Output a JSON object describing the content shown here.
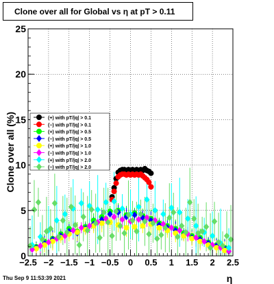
{
  "title": "Clone  over all for Global vs    η at pT > 0.11",
  "footer": "Thu Sep  9 11:53:39 2021",
  "chart_data": {
    "type": "scatter",
    "title": "Clone  over all for Global vs    η at pT > 0.11",
    "xlabel": "η",
    "ylabel": "Clone  over all (%)",
    "xlim": [
      -2.5,
      2.5
    ],
    "ylim": [
      0,
      25
    ],
    "x_ticks": [
      "−2.5",
      "−2",
      "−1.5",
      "−1",
      "−0.5",
      "0",
      "0.5",
      "1",
      "1.5",
      "2",
      "2.5"
    ],
    "y_ticks": [
      "0",
      "5",
      "10",
      "15",
      "20",
      "25"
    ],
    "grid": true,
    "legend_position": "left",
    "series": [
      {
        "name": "(+) with pT/|q| > 0.1",
        "color": "#000000",
        "marker": "circle",
        "x": [
          -0.45,
          -0.4,
          -0.35,
          -0.3,
          -0.25,
          -0.2,
          -0.15,
          -0.1,
          -0.05,
          0.0,
          0.05,
          0.1,
          0.15,
          0.2,
          0.25,
          0.3,
          0.35,
          0.4,
          0.45,
          0.5
        ],
        "y": [
          6.5,
          7.5,
          8.5,
          9.2,
          9.4,
          9.5,
          9.5,
          9.4,
          9.5,
          9.4,
          9.5,
          9.4,
          9.5,
          9.4,
          9.5,
          9.4,
          9.6,
          9.4,
          9.3,
          9.1
        ]
      },
      {
        "name": "(−) with pT/|q| > 0.1",
        "color": "#ff0000",
        "marker": "circle",
        "x": [
          -0.45,
          -0.4,
          -0.35,
          -0.3,
          -0.25,
          -0.2,
          -0.15,
          -0.1,
          -0.05,
          0.0,
          0.05,
          0.1,
          0.15,
          0.2,
          0.25,
          0.3,
          0.35,
          0.4,
          0.45,
          0.5
        ],
        "y": [
          6.2,
          7.1,
          8.0,
          8.7,
          8.9,
          9.0,
          9.0,
          8.9,
          9.0,
          8.9,
          9.0,
          8.9,
          9.0,
          8.9,
          9.0,
          8.8,
          8.6,
          8.4,
          8.1,
          7.6
        ]
      },
      {
        "name": "(+) with pT/|q| > 0.5",
        "color": "#00ff00",
        "marker": "circle",
        "x": [
          -2.3,
          -2.1,
          -1.9,
          -1.7,
          -1.5,
          -1.3,
          -1.1,
          -0.9,
          -0.7,
          -0.5,
          -0.3,
          -0.1,
          0.1,
          0.3,
          0.5,
          0.7,
          0.9,
          1.1,
          1.3,
          1.5,
          1.7,
          1.9,
          2.1,
          2.3
        ],
        "y": [
          1.0,
          1.6,
          1.9,
          2.4,
          3.0,
          2.7,
          3.2,
          3.9,
          4.3,
          4.9,
          5.0,
          4.5,
          4.7,
          4.4,
          4.1,
          3.6,
          3.3,
          3.0,
          2.5,
          2.2,
          2.0,
          1.5,
          1.2,
          0.9
        ]
      },
      {
        "name": "(−) with pT/|q| > 0.5",
        "color": "#0000ff",
        "marker": "diamond",
        "x": [
          -2.3,
          -2.1,
          -1.9,
          -1.7,
          -1.5,
          -1.3,
          -1.1,
          -0.9,
          -0.7,
          -0.5,
          -0.3,
          -0.1,
          0.1,
          0.3,
          0.5,
          0.7,
          0.9,
          1.1,
          1.3,
          1.5,
          1.7,
          1.9,
          2.1,
          2.3
        ],
        "y": [
          0.9,
          1.4,
          1.8,
          2.2,
          2.7,
          2.5,
          3.0,
          3.5,
          4.0,
          4.6,
          4.8,
          4.3,
          4.5,
          4.2,
          3.9,
          3.4,
          3.1,
          2.8,
          2.3,
          2.0,
          1.8,
          1.4,
          1.1,
          0.8
        ]
      },
      {
        "name": "(+) with pT/|q| > 1.0",
        "color": "#ffff00",
        "marker": "circle",
        "x": [
          -2.3,
          -2.1,
          -1.9,
          -1.7,
          -1.5,
          -1.3,
          -1.1,
          -0.9,
          -0.7,
          -0.5,
          -0.3,
          -0.1,
          0.1,
          0.3,
          0.5,
          0.7,
          0.9,
          1.1,
          1.3,
          1.5,
          1.7,
          1.9,
          2.1,
          2.3
        ],
        "y": [
          0.8,
          1.2,
          1.6,
          2.0,
          2.4,
          2.6,
          2.9,
          3.3,
          3.6,
          3.7,
          3.4,
          3.1,
          3.2,
          3.3,
          3.5,
          3.1,
          2.8,
          2.5,
          2.2,
          1.9,
          1.6,
          1.2,
          0.9,
          0.6
        ]
      },
      {
        "name": "(−) with pT/|q| > 1.0",
        "color": "#ff00ff",
        "marker": "diamond",
        "x": [
          -2.4,
          -2.2,
          -2.0,
          -1.8,
          -1.6,
          -1.4,
          -1.2,
          -1.0,
          -0.8,
          -0.6,
          -0.4,
          -0.2,
          0.0,
          0.2,
          0.4,
          0.6,
          0.8,
          1.0,
          1.2,
          1.4,
          1.6,
          1.8,
          2.0,
          2.2,
          2.4
        ],
        "y": [
          0.7,
          1.1,
          1.5,
          1.9,
          2.2,
          2.8,
          3.1,
          3.3,
          3.7,
          4.1,
          4.3,
          4.0,
          3.8,
          4.0,
          4.2,
          3.9,
          3.5,
          3.1,
          2.8,
          2.4,
          2.0,
          1.6,
          1.2,
          0.9,
          0.5
        ]
      },
      {
        "name": "(+) with pT/|q| > 2.0",
        "color": "#00ffff",
        "marker": "diamond",
        "x": [
          -2.4,
          -2.2,
          -2.0,
          -1.8,
          -1.6,
          -1.4,
          -1.2,
          -1.0,
          -0.8,
          -0.6,
          -0.4,
          -0.2,
          0.0,
          0.2,
          0.4,
          0.6,
          0.8,
          1.0,
          1.2,
          1.4,
          1.6,
          1.8,
          2.0,
          2.2,
          2.4
        ],
        "y": [
          1.2,
          2.1,
          2.8,
          3.9,
          4.6,
          5.2,
          5.8,
          5.5,
          5.1,
          5.9,
          6.0,
          5.2,
          4.6,
          5.4,
          6.2,
          5.0,
          4.6,
          5.3,
          4.8,
          4.1,
          3.3,
          2.6,
          2.2,
          1.4,
          0.9
        ]
      },
      {
        "name": "(−) with pT/|q| > 2.0",
        "color": "#66dd66",
        "marker": "diamond",
        "x": [
          -2.45,
          -2.35,
          -2.25,
          -2.15,
          -2.05,
          -1.95,
          -1.85,
          -1.75,
          -1.65,
          -1.55,
          -1.45,
          -1.35,
          -1.25,
          -1.15,
          -1.05,
          -0.95,
          -0.85,
          -0.75,
          -0.65,
          -0.55,
          -0.45,
          -0.35,
          -0.25,
          -0.15,
          -0.05,
          0.05,
          0.15,
          0.25,
          0.35,
          0.45,
          0.55,
          0.65,
          0.75,
          0.85,
          0.95,
          1.05,
          1.15,
          1.25,
          1.35,
          1.45,
          1.55,
          1.65,
          1.75,
          1.85,
          1.95,
          2.05,
          2.15,
          2.25,
          2.35,
          2.45
        ],
        "y": [
          1.1,
          5.1,
          5.9,
          1.8,
          2.7,
          3.0,
          5.8,
          2.1,
          3.9,
          2.6,
          5.4,
          3.4,
          1.2,
          4.3,
          2.8,
          5.1,
          3.6,
          2.0,
          4.8,
          3.7,
          2.2,
          4.9,
          3.3,
          2.5,
          4.5,
          3.9,
          2.7,
          4.6,
          3.8,
          2.4,
          3.6,
          1.9,
          2.3,
          3.1,
          4.2,
          4.8,
          2.1,
          3.3,
          2.6,
          5.9,
          4.1,
          2.5,
          2.7,
          3.2,
          0.9,
          3.8,
          1.5,
          1.1,
          2.2,
          1.8
        ]
      }
    ]
  }
}
